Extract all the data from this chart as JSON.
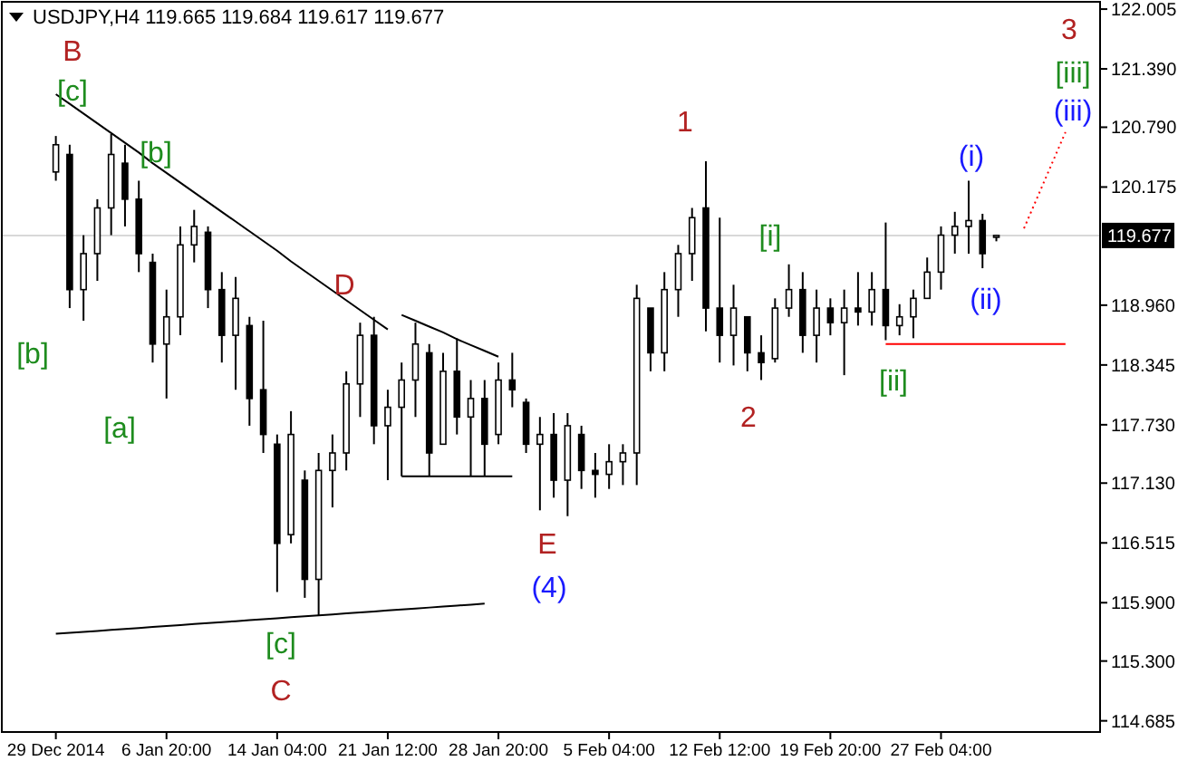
{
  "chart_data": {
    "type": "candlestick",
    "title": "USDJPY,H4  119.665 119.684 119.617 119.677",
    "color": "#000000",
    "categories": [
      "29 Dec 2014",
      null,
      null,
      null,
      null,
      null,
      null,
      null,
      "6 Jan 20:00",
      null,
      null,
      null,
      null,
      null,
      null,
      null,
      "14 Jan 04:00",
      null,
      null,
      null,
      null,
      null,
      null,
      null,
      "21 Jan 12:00",
      null,
      null,
      null,
      null,
      null,
      null,
      null,
      "28 Jan 20:00",
      null,
      null,
      null,
      null,
      null,
      null,
      null,
      "5 Feb 04:00",
      null,
      null,
      null,
      null,
      null,
      null,
      null,
      "12 Feb 12:00",
      null,
      null,
      null,
      null,
      null,
      null,
      null,
      "19 Feb 20:00",
      null,
      null,
      null,
      null,
      null,
      null,
      null,
      "27 Feb 04:00",
      null,
      null,
      null,
      null,
      null,
      null,
      null,
      null,
      null,
      null,
      null
    ],
    "ohlc": [
      [
        120.33,
        120.7,
        120.24,
        120.61
      ],
      [
        120.51,
        120.61,
        118.93,
        119.12
      ],
      [
        119.12,
        119.68,
        118.8,
        119.49
      ],
      [
        119.49,
        120.05,
        119.21,
        119.96
      ],
      [
        119.96,
        120.72,
        119.68,
        120.51
      ],
      [
        120.42,
        120.61,
        119.77,
        120.05
      ],
      [
        120.05,
        120.24,
        119.3,
        119.49
      ],
      [
        119.4,
        119.49,
        118.37,
        118.56
      ],
      [
        118.56,
        119.12,
        118.0,
        118.84
      ],
      [
        118.84,
        119.77,
        118.65,
        119.58
      ],
      [
        119.58,
        119.94,
        119.4,
        119.77
      ],
      [
        119.71,
        119.77,
        118.93,
        119.12
      ],
      [
        119.12,
        119.3,
        118.37,
        118.65
      ],
      [
        118.65,
        119.25,
        118.09,
        119.03
      ],
      [
        118.75,
        118.84,
        117.72,
        118.0
      ],
      [
        118.09,
        118.8,
        117.44,
        117.63
      ],
      [
        117.53,
        117.63,
        116.01,
        116.51
      ],
      [
        116.6,
        117.87,
        116.51,
        117.63
      ],
      [
        117.16,
        117.26,
        115.95,
        116.14
      ],
      [
        116.14,
        117.44,
        115.77,
        117.26
      ],
      [
        117.26,
        117.63,
        116.88,
        117.44
      ],
      [
        117.44,
        118.28,
        117.26,
        118.15
      ],
      [
        118.15,
        118.78,
        117.81,
        118.65
      ],
      [
        118.65,
        118.84,
        117.53,
        117.72
      ],
      [
        117.72,
        118.09,
        117.16,
        117.91
      ],
      [
        117.91,
        118.37,
        117.2,
        118.19
      ],
      [
        118.19,
        118.78,
        117.81,
        118.56
      ],
      [
        118.47,
        118.56,
        117.2,
        117.44
      ],
      [
        117.53,
        118.47,
        117.53,
        118.28
      ],
      [
        118.28,
        118.62,
        117.63,
        117.81
      ],
      [
        117.81,
        118.19,
        117.2,
        118.0
      ],
      [
        118.0,
        118.19,
        117.2,
        117.53
      ],
      [
        117.63,
        118.37,
        117.53,
        118.19
      ],
      [
        118.19,
        118.47,
        117.91,
        118.09
      ],
      [
        117.96,
        118.0,
        117.44,
        117.53
      ],
      [
        117.53,
        117.81,
        116.85,
        117.63
      ],
      [
        117.63,
        117.85,
        116.98,
        117.16
      ],
      [
        117.16,
        117.85,
        116.79,
        117.72
      ],
      [
        117.63,
        117.72,
        117.07,
        117.26
      ],
      [
        117.26,
        117.44,
        116.98,
        117.22
      ],
      [
        117.22,
        117.53,
        117.07,
        117.35
      ],
      [
        117.35,
        117.53,
        117.11,
        117.44
      ],
      [
        117.44,
        119.17,
        117.11,
        119.03
      ],
      [
        118.93,
        118.93,
        118.28,
        118.47
      ],
      [
        118.47,
        119.3,
        118.28,
        119.12
      ],
      [
        119.12,
        119.58,
        118.84,
        119.49
      ],
      [
        119.49,
        119.96,
        119.21,
        119.86
      ],
      [
        119.96,
        120.44,
        118.69,
        118.93
      ],
      [
        118.93,
        119.86,
        118.37,
        118.65
      ],
      [
        118.65,
        119.17,
        118.34,
        118.93
      ],
      [
        118.84,
        118.84,
        118.28,
        118.47
      ],
      [
        118.47,
        118.65,
        118.19,
        118.37
      ],
      [
        118.41,
        119.03,
        118.37,
        118.93
      ],
      [
        118.93,
        119.38,
        118.84,
        119.12
      ],
      [
        119.12,
        119.3,
        118.47,
        118.65
      ],
      [
        118.65,
        119.12,
        118.37,
        118.93
      ],
      [
        118.93,
        119.03,
        118.65,
        118.78
      ],
      [
        118.78,
        119.12,
        118.24,
        118.93
      ],
      [
        118.93,
        119.3,
        118.75,
        118.89
      ],
      [
        118.89,
        119.3,
        118.75,
        119.12
      ],
      [
        119.12,
        119.81,
        118.6,
        118.75
      ],
      [
        118.75,
        118.97,
        118.65,
        118.84
      ],
      [
        118.84,
        119.12,
        118.62,
        119.03
      ],
      [
        119.03,
        119.45,
        119.03,
        119.3
      ],
      [
        119.3,
        119.77,
        119.12,
        119.68
      ],
      [
        119.68,
        119.92,
        119.49,
        119.77
      ],
      [
        119.77,
        120.24,
        119.49,
        119.83
      ],
      [
        119.83,
        119.9,
        119.34,
        119.49
      ],
      [
        119.665,
        119.684,
        119.617,
        119.677
      ],
      null,
      null,
      null,
      null,
      null,
      null,
      null
    ],
    "series": [
      {
        "type": "line",
        "color": "#000000",
        "values": [
          115.58,
          115.59,
          115.6,
          115.61,
          115.62,
          115.63,
          115.64,
          115.65,
          115.66,
          115.67,
          115.68,
          115.69,
          115.7,
          115.71,
          115.72,
          115.73,
          115.74,
          115.75,
          115.76,
          115.77,
          115.78,
          115.79,
          115.8,
          115.81,
          115.82,
          115.83,
          115.84,
          115.85,
          115.86,
          115.87,
          115.88,
          115.89,
          null,
          null,
          null,
          null,
          null,
          null,
          null,
          null,
          null,
          null,
          null,
          null,
          null,
          null,
          null,
          null,
          null,
          null,
          null,
          null,
          null,
          null,
          null,
          null,
          null,
          null,
          null,
          null,
          null,
          null,
          null,
          null,
          null,
          null,
          null,
          null,
          null,
          null,
          null,
          null,
          null,
          null,
          null,
          null
        ]
      },
      {
        "type": "line",
        "color": "#000000",
        "values": [
          121.13,
          121.03,
          120.93,
          120.83,
          120.73,
          120.63,
          120.53,
          120.42,
          120.32,
          120.22,
          120.12,
          120.02,
          119.92,
          119.82,
          119.72,
          119.62,
          119.52,
          119.41,
          119.31,
          119.21,
          119.11,
          119.01,
          118.91,
          118.81,
          118.71,
          null,
          null,
          null,
          null,
          null,
          null,
          null,
          null,
          null,
          null,
          null,
          null,
          null,
          null,
          null,
          null,
          null,
          null,
          null,
          null,
          null,
          null,
          null,
          null,
          null,
          null,
          null,
          null,
          null,
          null,
          null,
          null,
          null,
          null,
          null,
          null,
          null,
          null,
          null,
          null,
          null,
          null,
          null,
          null,
          null,
          null,
          null,
          null,
          null,
          null,
          null
        ]
      },
      {
        "type": "line",
        "color": "#000000",
        "values": [
          null,
          null,
          null,
          null,
          null,
          null,
          null,
          null,
          null,
          null,
          null,
          null,
          null,
          null,
          null,
          null,
          null,
          null,
          null,
          null,
          null,
          null,
          null,
          null,
          null,
          117.2,
          117.2,
          117.2,
          117.2,
          117.2,
          117.2,
          117.2,
          117.2,
          117.2,
          null,
          null,
          null,
          null,
          null,
          null,
          null,
          null,
          null,
          null,
          null,
          null,
          null,
          null,
          null,
          null,
          null,
          null,
          null,
          null,
          null,
          null,
          null,
          null,
          null,
          null,
          null,
          null,
          null,
          null,
          null,
          null,
          null,
          null,
          null,
          null,
          null,
          null,
          null,
          null,
          null,
          null
        ]
      },
      {
        "type": "line",
        "color": "#000000",
        "values": [
          null,
          null,
          null,
          null,
          null,
          null,
          null,
          null,
          null,
          null,
          null,
          null,
          null,
          null,
          null,
          null,
          null,
          null,
          null,
          null,
          null,
          null,
          null,
          null,
          null,
          118.86,
          118.8,
          118.74,
          118.68,
          118.61,
          118.55,
          118.49,
          118.43,
          null,
          null,
          null,
          null,
          null,
          null,
          null,
          null,
          null,
          null,
          null,
          null,
          null,
          null,
          null,
          null,
          null,
          null,
          null,
          null,
          null,
          null,
          null,
          null,
          null,
          null,
          null,
          null,
          null,
          null,
          null,
          null,
          null,
          null,
          null,
          null,
          null,
          null,
          null,
          null,
          null,
          null,
          null
        ]
      },
      {
        "type": "line",
        "color": "#ff0000",
        "values": [
          null,
          null,
          null,
          null,
          null,
          null,
          null,
          null,
          null,
          null,
          null,
          null,
          null,
          null,
          null,
          null,
          null,
          null,
          null,
          null,
          null,
          null,
          null,
          null,
          null,
          null,
          null,
          null,
          null,
          null,
          null,
          null,
          null,
          null,
          null,
          null,
          null,
          null,
          null,
          null,
          null,
          null,
          null,
          null,
          null,
          null,
          null,
          null,
          null,
          null,
          null,
          null,
          null,
          null,
          null,
          null,
          null,
          null,
          null,
          null,
          118.56,
          118.56,
          118.56,
          118.56,
          118.56,
          118.56,
          118.56,
          118.56,
          118.56,
          118.56,
          118.56,
          118.56,
          118.56,
          118.56,
          null,
          null
        ]
      },
      {
        "type": "line",
        "color": "#ff0000",
        "line_style": "dotted",
        "values": [
          null,
          null,
          null,
          null,
          null,
          null,
          null,
          null,
          null,
          null,
          null,
          null,
          null,
          null,
          null,
          null,
          null,
          null,
          null,
          null,
          null,
          null,
          null,
          null,
          null,
          null,
          null,
          null,
          null,
          null,
          null,
          null,
          null,
          null,
          null,
          null,
          null,
          null,
          null,
          null,
          null,
          null,
          null,
          null,
          null,
          null,
          null,
          null,
          null,
          null,
          null,
          null,
          null,
          null,
          null,
          null,
          null,
          null,
          null,
          null,
          null,
          null,
          null,
          null,
          null,
          null,
          null,
          null,
          null,
          null,
          119.75,
          120.08,
          120.41,
          120.74,
          null,
          null
        ]
      }
    ],
    "ylim": [
      114.57,
      122.08
    ],
    "yticks": [
      {
        "value": 114.685,
        "label": "114.685"
      },
      {
        "value": 115.3,
        "label": "115.300"
      },
      {
        "value": 115.9,
        "label": "115.900"
      },
      {
        "value": 116.515,
        "label": "116.515"
      },
      {
        "value": 117.13,
        "label": "117.130"
      },
      {
        "value": 117.73,
        "label": "117.730"
      },
      {
        "value": 118.345,
        "label": "118.345"
      },
      {
        "value": 118.96,
        "label": "118.960"
      },
      {
        "value": 120.175,
        "label": "120.175"
      },
      {
        "value": 120.79,
        "label": "120.790"
      },
      {
        "value": 121.39,
        "label": "121.390"
      },
      {
        "value": 122.005,
        "label": "122.005"
      }
    ],
    "ref_lines": [
      {
        "axis": "y",
        "value": 119.677,
        "label": "119.677",
        "color": "#d8d8d8"
      }
    ],
    "annotations": [
      "B",
      "[c]",
      "[b]",
      "[b]",
      "[a]",
      "[c]",
      "C",
      "D",
      "E",
      "(4)",
      "1",
      "[i]",
      "2",
      "[ii]",
      "(i)",
      "(ii)",
      "3",
      "[iii]",
      "(iii)"
    ]
  }
}
